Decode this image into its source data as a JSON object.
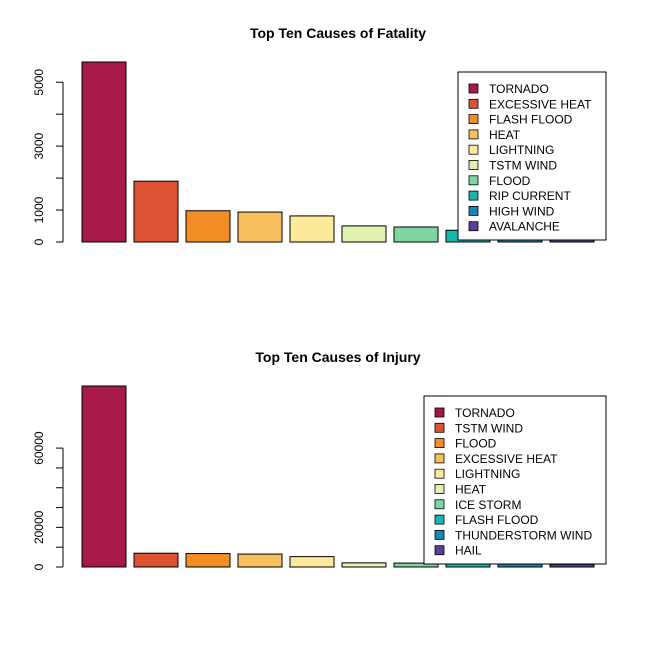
{
  "chart_data": [
    {
      "type": "bar",
      "title": "Top Ten Causes of Fatality",
      "xlabel": "",
      "ylabel": "",
      "ylim": [
        0,
        5633
      ],
      "yticks": [
        0,
        1000,
        3000,
        5000
      ],
      "categories": [
        "TORNADO",
        "EXCESSIVE HEAT",
        "FLASH FLOOD",
        "HEAT",
        "LIGHTNING",
        "TSTM WIND",
        "FLOOD",
        "RIP CURRENT",
        "HIGH WIND",
        "AVALANCHE"
      ],
      "values": [
        5633,
        1903,
        978,
        937,
        816,
        504,
        470,
        368,
        248,
        224
      ],
      "colors": [
        "#A6184A",
        "#DB5333",
        "#F28E23",
        "#F9C05E",
        "#FCEA9A",
        "#E0F2AF",
        "#7FD6A0",
        "#16B8AE",
        "#1E86B5",
        "#5B3E96"
      ],
      "legend_position": "top-right"
    },
    {
      "type": "bar",
      "title": "Top Ten Causes of Injury",
      "xlabel": "",
      "ylabel": "",
      "ylim": [
        0,
        91346
      ],
      "yticks": [
        0,
        20000,
        60000
      ],
      "categories": [
        "TORNADO",
        "TSTM WIND",
        "FLOOD",
        "EXCESSIVE HEAT",
        "LIGHTNING",
        "HEAT",
        "ICE STORM",
        "FLASH FLOOD",
        "THUNDERSTORM WIND",
        "HAIL"
      ],
      "values": [
        91346,
        6957,
        6789,
        6525,
        5230,
        2100,
        1975,
        1777,
        1488,
        1361
      ],
      "colors": [
        "#A6184A",
        "#DB5333",
        "#F28E23",
        "#F9C05E",
        "#FCEA9A",
        "#E0F2AF",
        "#7FD6A0",
        "#16B8AE",
        "#1E86B5",
        "#5B3E96"
      ],
      "legend_position": "top-right"
    }
  ]
}
